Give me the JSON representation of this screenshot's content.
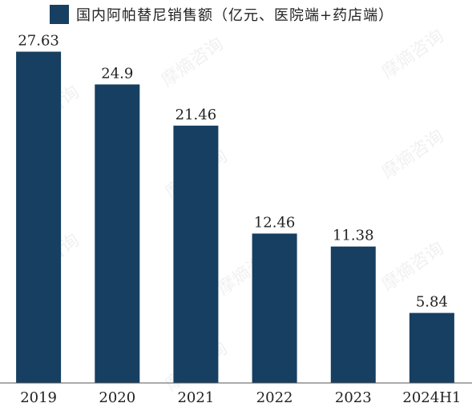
{
  "chart_data": {
    "type": "bar",
    "categories": [
      "2019",
      "2020",
      "2021",
      "2022",
      "2023",
      "2024H1"
    ],
    "series": [
      {
        "name": "国内阿帕替尼销售额（亿元、医院端+药店端）",
        "values": [
          27.63,
          24.9,
          21.46,
          12.46,
          11.38,
          5.84
        ],
        "value_labels": [
          "27.63",
          "24.9",
          "21.46",
          "12.46",
          "11.38",
          "5.84"
        ]
      }
    ],
    "ylim": [
      0,
      30
    ],
    "grid": false,
    "legend_position": "top-left",
    "colors": {
      "bar": "#163F61",
      "text": "#222222",
      "axis": "#555555"
    }
  },
  "watermark": "摩熵咨询"
}
